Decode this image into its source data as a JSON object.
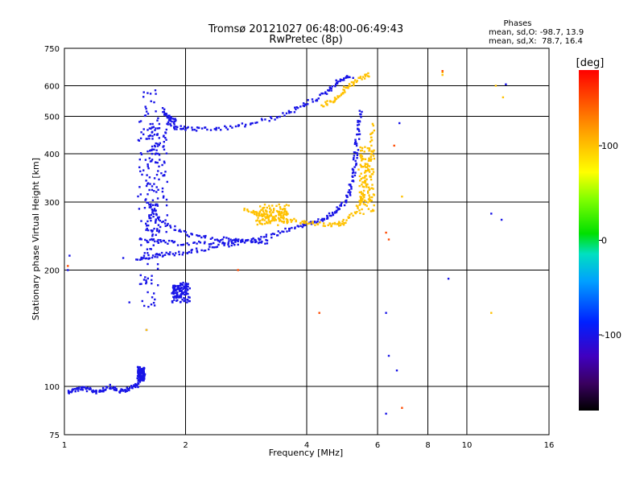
{
  "chart_data": {
    "type": "scatter",
    "title": "Tromsø 20121027 06:48:00-06:49:43",
    "subtitle": "RwPretec (8p)",
    "xlabel": "Frequency [MHz]",
    "ylabel": "Stationary phase Virtual Height [km]",
    "x_scale": "log",
    "y_scale": "log",
    "xlim": [
      1,
      16
    ],
    "ylim": [
      75,
      750
    ],
    "x_ticks": [
      1,
      2,
      4,
      6,
      8,
      10,
      16
    ],
    "y_ticks": [
      75,
      100,
      200,
      300,
      400,
      500,
      600,
      750
    ],
    "grid": true,
    "stats": {
      "heading": "Phases",
      "line_o": "mean, sd,O: -98.7, 13.9",
      "line_x": "mean, sd,X:  78.7, 16.4"
    },
    "colorbar": {
      "label": "[deg]",
      "ticks": [
        100,
        0,
        -100
      ],
      "range": [
        -180,
        180
      ]
    },
    "series": [
      {
        "phase_deg": -100,
        "traces": [
          [
            [
              1.02,
              97
            ],
            [
              1.06,
              98
            ],
            [
              1.1,
              99
            ],
            [
              1.15,
              98
            ],
            [
              1.2,
              97
            ],
            [
              1.25,
              98
            ],
            [
              1.3,
              100
            ],
            [
              1.35,
              98
            ],
            [
              1.4,
              97
            ],
            [
              1.45,
              99
            ],
            [
              1.5,
              100
            ],
            [
              1.53,
              102
            ]
          ],
          [
            [
              1.52,
              215
            ],
            [
              1.6,
              216
            ],
            [
              1.7,
              218
            ],
            [
              1.8,
              220
            ],
            [
              2.0,
              222
            ],
            [
              2.2,
              226
            ],
            [
              2.5,
              232
            ],
            [
              2.8,
              236
            ],
            [
              3.0,
              240
            ],
            [
              3.3,
              246
            ],
            [
              3.6,
              255
            ],
            [
              3.9,
              262
            ],
            [
              4.1,
              265
            ]
          ],
          [
            [
              1.55,
              240
            ],
            [
              1.7,
              237
            ],
            [
              1.85,
              235
            ],
            [
              2.1,
              234
            ],
            [
              2.4,
              236
            ],
            [
              2.7,
              238
            ],
            [
              3.0,
              238
            ],
            [
              3.2,
              236
            ]
          ],
          [
            [
              1.6,
              300
            ],
            [
              1.7,
              275
            ],
            [
              1.85,
              258
            ],
            [
              2.0,
              248
            ],
            [
              2.2,
              243
            ],
            [
              2.5,
              240
            ],
            [
              2.8,
              238
            ]
          ],
          [
            [
              1.8,
              480
            ],
            [
              1.9,
              468
            ],
            [
              2.0,
              465
            ],
            [
              2.2,
              462
            ],
            [
              2.5,
              465
            ],
            [
              2.8,
              475
            ],
            [
              3.2,
              490
            ],
            [
              3.6,
              510
            ],
            [
              3.9,
              530
            ],
            [
              4.2,
              555
            ],
            [
              4.5,
              580
            ],
            [
              4.7,
              605
            ],
            [
              4.9,
              625
            ],
            [
              5.2,
              635
            ]
          ],
          [
            [
              4.1,
              265
            ],
            [
              4.4,
              270
            ],
            [
              4.6,
              278
            ],
            [
              4.8,
              288
            ],
            [
              5.0,
              300
            ],
            [
              5.1,
              320
            ],
            [
              5.2,
              345
            ],
            [
              5.25,
              370
            ],
            [
              5.3,
              400
            ],
            [
              5.35,
              440
            ],
            [
              5.4,
              480
            ],
            [
              5.45,
              520
            ]
          ],
          [
            [
              1.75,
              520
            ],
            [
              1.8,
              500
            ],
            [
              1.85,
              490
            ],
            [
              1.9,
              485
            ]
          ]
        ],
        "clusters": [
          [
            1.52,
            1.72,
            160,
            600
          ],
          [
            1.85,
            2.05,
            165,
            185
          ],
          [
            1.52,
            1.58,
            103,
            112
          ],
          [
            1.6,
            1.8,
            250,
            480
          ]
        ],
        "points": [
          [
            1.02,
            200
          ],
          [
            1.03,
            218
          ],
          [
            1.4,
            215
          ],
          [
            1.45,
            165
          ],
          [
            1.6,
            140
          ],
          [
            6.3,
            155
          ],
          [
            6.4,
            120
          ],
          [
            6.7,
            110
          ],
          [
            6.3,
            85
          ],
          [
            9.0,
            190
          ],
          [
            11.5,
            280
          ],
          [
            12.2,
            270
          ],
          [
            6.8,
            480
          ],
          [
            12.5,
            605
          ]
        ]
      },
      {
        "phase_deg": 100,
        "traces": [
          [
            [
              2.8,
              290
            ],
            [
              3.0,
              280
            ],
            [
              3.2,
              275
            ],
            [
              3.5,
              270
            ],
            [
              3.8,
              268
            ],
            [
              4.1,
              265
            ],
            [
              4.5,
              262
            ],
            [
              4.8,
              262
            ],
            [
              5.0,
              268
            ],
            [
              5.3,
              285
            ],
            [
              5.5,
              310
            ],
            [
              5.6,
              340
            ],
            [
              5.7,
              380
            ],
            [
              5.8,
              430
            ],
            [
              5.85,
              480
            ]
          ],
          [
            [
              4.4,
              535
            ],
            [
              4.6,
              545
            ],
            [
              4.8,
              560
            ],
            [
              5.0,
              590
            ],
            [
              5.2,
              610
            ],
            [
              5.5,
              630
            ],
            [
              5.7,
              640
            ]
          ]
        ],
        "clusters": [
          [
            5.4,
            5.9,
            280,
            420
          ],
          [
            3.0,
            3.6,
            262,
            295
          ]
        ],
        "points": [
          [
            1.6,
            140
          ],
          [
            6.9,
            310
          ],
          [
            11.5,
            155
          ],
          [
            12.3,
            560
          ],
          [
            8.7,
            650
          ],
          [
            8.7,
            640
          ],
          [
            11.8,
            600
          ]
        ]
      },
      {
        "phase_deg": 150,
        "traces": [],
        "clusters": [],
        "points": [
          [
            1.02,
            205
          ],
          [
            2.7,
            200
          ],
          [
            4.3,
            155
          ],
          [
            6.3,
            250
          ],
          [
            6.6,
            420
          ],
          [
            6.9,
            88
          ],
          [
            8.7,
            655
          ],
          [
            6.4,
            240
          ]
        ]
      }
    ]
  }
}
